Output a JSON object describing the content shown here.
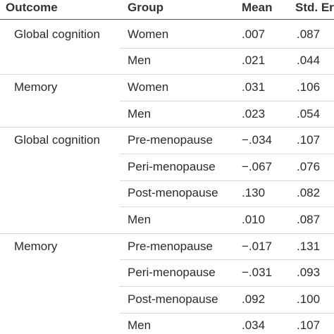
{
  "headers": {
    "outcome": "Outcome",
    "group": "Group",
    "mean": "Mean",
    "std": "Std. Err"
  },
  "rows": [
    {
      "outcome": "Global cognition",
      "group": "Women",
      "mean": ".007",
      "std": ".087"
    },
    {
      "outcome": "",
      "group": "Men",
      "mean": ".021",
      "std": ".044"
    },
    {
      "outcome": "Memory",
      "group": "Women",
      "mean": ".031",
      "std": ".106"
    },
    {
      "outcome": "",
      "group": "Men",
      "mean": ".023",
      "std": ".054"
    },
    {
      "outcome": "Global cognition",
      "group": "Pre-menopause",
      "mean": "−.034",
      "std": ".107"
    },
    {
      "outcome": "",
      "group": "Peri-menopause",
      "mean": "−.067",
      "std": ".076"
    },
    {
      "outcome": "",
      "group": "Post-menopause",
      "mean": ".130",
      "std": ".082"
    },
    {
      "outcome": "",
      "group": "Men",
      "mean": ".010",
      "std": ".087"
    },
    {
      "outcome": "Memory",
      "group": "Pre-menopause",
      "mean": "−.017",
      "std": ".131"
    },
    {
      "outcome": "",
      "group": "Peri-menopause",
      "mean": "−.031",
      "std": ".093"
    },
    {
      "outcome": "",
      "group": "Post-menopause",
      "mean": ".092",
      "std": ".100"
    },
    {
      "outcome": "",
      "group": "Men",
      "mean": ".034",
      "std": ".107"
    }
  ]
}
